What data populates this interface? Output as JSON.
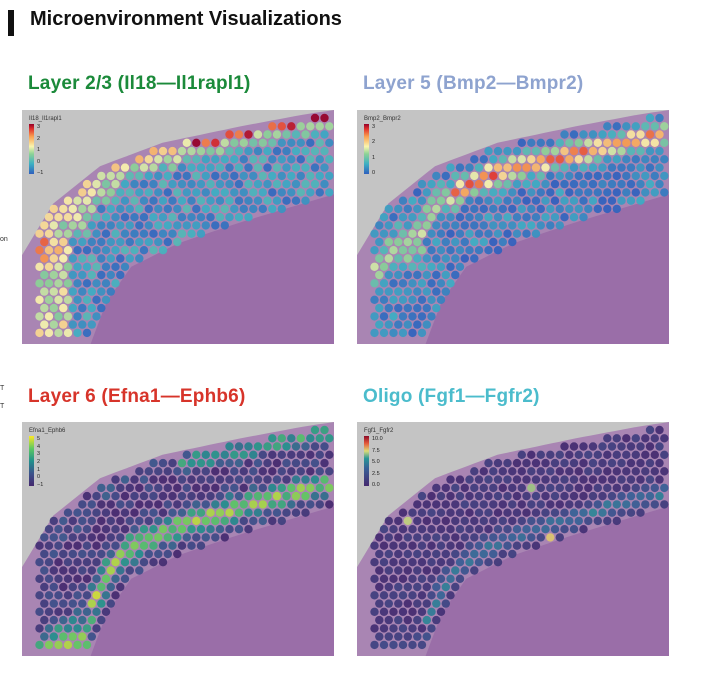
{
  "header": {
    "title": "Microenvironment Visualizations"
  },
  "side_fragments": [
    "on",
    "T",
    "T"
  ],
  "colors": {
    "layer23": "#1b8a3a",
    "layer5": "#8ea3cf",
    "layer6": "#d7342a",
    "oligo": "#4bbccc",
    "tissue": "#a57ab0",
    "background": "#c4c4c4"
  },
  "panels": [
    {
      "title": "Layer 2/3 (Il18—Il1rapl1)",
      "legend_title": "Il18_Il1rapl1",
      "ticks": [
        "3",
        "2",
        "1",
        "0",
        "−1"
      ],
      "title_color": "#1b8a3a",
      "pattern": "l23"
    },
    {
      "title": "Layer 5 (Bmp2—Bmpr2)",
      "legend_title": "Bmp2_Bmpr2",
      "ticks": [
        "3",
        "2",
        "1",
        "0"
      ],
      "title_color": "#8ea3cf",
      "pattern": "l5"
    },
    {
      "title": "Layer 6 (Efna1—Ephb6)",
      "legend_title": "Efna1_Ephb6",
      "ticks": [
        "5",
        "4",
        "3",
        "2",
        "1",
        "0",
        "−1"
      ],
      "title_color": "#d7342a",
      "pattern": "l6"
    },
    {
      "title": "Oligo (Fgf1—Fgfr2)",
      "legend_title": "Fgf1_Fgfr2",
      "ticks": [
        "10.0",
        "7.5",
        "5.0",
        "2.5",
        "0.0"
      ],
      "title_color": "#4bbccc",
      "pattern": "oligo"
    }
  ]
}
